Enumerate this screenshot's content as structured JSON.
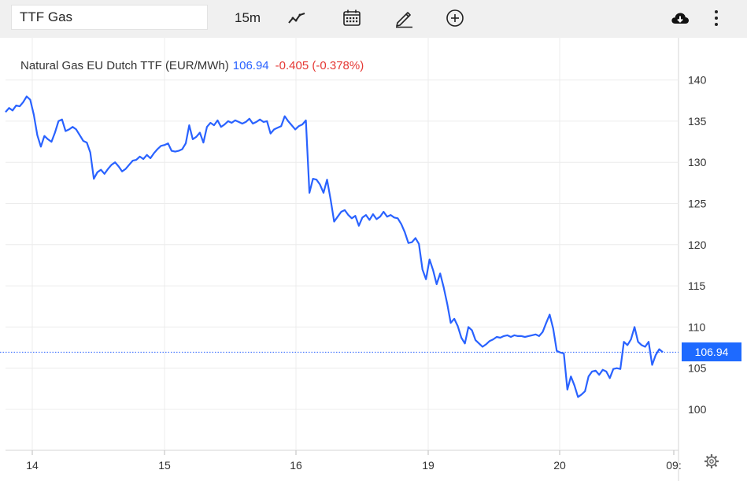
{
  "toolbar": {
    "symbol": "TTF Gas",
    "interval": "15m",
    "icons": [
      "line-chart-icon",
      "calendar-icon",
      "pencil-icon",
      "plus-circle-icon",
      "cloud-download-icon",
      "more-vertical-icon"
    ]
  },
  "header": {
    "instrument": "Natural Gas EU Dutch TTF (EUR/MWh)",
    "last": "106.94",
    "change": "-0.405 (-0.378%)"
  },
  "price_tag": "106.94",
  "chart_data": {
    "type": "line",
    "title": "Natural Gas EU Dutch TTF (EUR/MWh)",
    "xlabel": "",
    "ylabel": "",
    "x_ticks": [
      "14",
      "15",
      "16",
      "19",
      "20",
      "09:"
    ],
    "y_ticks": [
      100,
      105,
      110,
      115,
      120,
      125,
      130,
      135,
      140
    ],
    "ylim": [
      95,
      145
    ],
    "grid": true,
    "last_value": 106.94,
    "colors": {
      "line": "#2962ff",
      "change_text": "#e53935",
      "value_text": "#2962ff",
      "tag_bg": "#1e6aff"
    },
    "series": [
      {
        "values": [
          136.1,
          136.6,
          136.3,
          136.9,
          136.8,
          137.3,
          138.0,
          137.6,
          135.8,
          133.3,
          131.9,
          133.2,
          132.8,
          132.5,
          133.6,
          135.0,
          135.2,
          133.8,
          134.0,
          134.3,
          134.0,
          133.3,
          132.6,
          132.4,
          131.2,
          128.0,
          128.8,
          129.1,
          128.6,
          129.2,
          129.7,
          130.0,
          129.5,
          128.9,
          129.2,
          129.7,
          130.2,
          130.3,
          130.7,
          130.4,
          130.9,
          130.5,
          131.1,
          131.6,
          132.0,
          132.1,
          132.3,
          131.4,
          131.3,
          131.4,
          131.6,
          132.3,
          134.5,
          132.8,
          133.1,
          133.6,
          132.4,
          134.3,
          134.8,
          134.5,
          135.1,
          134.3,
          134.6,
          135.0,
          134.8,
          135.1,
          134.9,
          134.7,
          134.9,
          135.3,
          134.7,
          134.9,
          135.2,
          134.9,
          135.0,
          133.5,
          134.0,
          134.2,
          134.4,
          135.6,
          135.0,
          134.5,
          134.0,
          134.4,
          134.6,
          135.1,
          126.3,
          128.0,
          127.9,
          127.3,
          126.3,
          127.9,
          125.5,
          122.8,
          123.4,
          124.0,
          124.2,
          123.6,
          123.2,
          123.5,
          122.3,
          123.3,
          123.6,
          123.0,
          123.7,
          123.1,
          123.4,
          124.0,
          123.4,
          123.6,
          123.3,
          123.2,
          122.5,
          121.5,
          120.2,
          120.3,
          120.8,
          120.1,
          117.0,
          115.8,
          118.2,
          116.9,
          115.2,
          116.5,
          114.8,
          112.8,
          110.5,
          111.0,
          110.1,
          108.7,
          108.0,
          110.0,
          109.6,
          108.4,
          108.0,
          107.6,
          107.9,
          108.3,
          108.5,
          108.8,
          108.7,
          108.9,
          109.0,
          108.8,
          109.0,
          108.9,
          108.9,
          108.8,
          108.9,
          109.0,
          109.1,
          108.9,
          109.4,
          110.5,
          111.5,
          109.8,
          107.1,
          106.9,
          106.8,
          102.4,
          104.0,
          102.9,
          101.5,
          101.8,
          102.2,
          104.0,
          104.6,
          104.7,
          104.2,
          104.8,
          104.6,
          103.8,
          104.9,
          105.0,
          104.9,
          108.2,
          107.8,
          108.5,
          110.0,
          108.2,
          107.8,
          107.6,
          108.2,
          105.4,
          106.6,
          107.3,
          106.94
        ]
      }
    ]
  }
}
